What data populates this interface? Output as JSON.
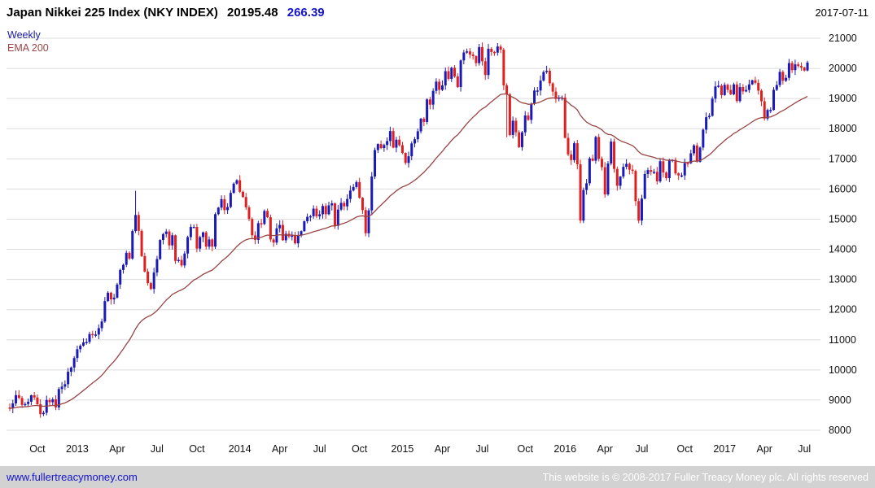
{
  "header": {
    "title": "Japan Nikkei 225 Index (NKY INDEX)",
    "last_price": "20195.48",
    "change": "266.39",
    "date": "2017-07-11"
  },
  "legend": {
    "series_label": "Weekly",
    "overlay_label": "EMA 200"
  },
  "footer": {
    "website_link": "www.fullertreacymoney.com",
    "copyright": "This website is © 2008-2017 Fuller Treacy Money plc. All rights reserved"
  },
  "colors": {
    "up_candle": "#1a1ab8",
    "down_candle": "#e02020",
    "ema_line": "#994444",
    "grid": "#dcdcdc",
    "change_text": "#1414c8",
    "weekly_label": "#1a1aa0",
    "link": "#1414cc",
    "copyright_text": "#ffffff",
    "footer_bg": "#d2d2d2"
  },
  "chart_data": {
    "type": "candlestick",
    "timeframe": "weekly",
    "title": "Japan Nikkei 225 Index (NKY INDEX)",
    "last": 20195.48,
    "change": 266.39,
    "ylim": [
      8000,
      21000
    ],
    "ytick_step": 1000,
    "y_ticks": [
      8000,
      9000,
      10000,
      11000,
      12000,
      13000,
      14000,
      15000,
      16000,
      17000,
      18000,
      19000,
      20000,
      21000
    ],
    "grid": "horizontal",
    "y_axis_side": "right",
    "legend_position": "top-left",
    "overlay": {
      "label": "EMA 200",
      "period_weeks": 40
    },
    "x_ticks": [
      {
        "label": "Oct",
        "index": 9
      },
      {
        "label": "2013",
        "index": 22
      },
      {
        "label": "Apr",
        "index": 35
      },
      {
        "label": "Jul",
        "index": 48
      },
      {
        "label": "Oct",
        "index": 61
      },
      {
        "label": "2014",
        "index": 75
      },
      {
        "label": "Apr",
        "index": 88
      },
      {
        "label": "Jul",
        "index": 101
      },
      {
        "label": "Oct",
        "index": 114
      },
      {
        "label": "2015",
        "index": 128
      },
      {
        "label": "Apr",
        "index": 141
      },
      {
        "label": "Jul",
        "index": 154
      },
      {
        "label": "Oct",
        "index": 168
      },
      {
        "label": "2016",
        "index": 181
      },
      {
        "label": "Apr",
        "index": 194
      },
      {
        "label": "Jul",
        "index": 206
      },
      {
        "label": "Oct",
        "index": 220
      },
      {
        "label": "2017",
        "index": 233
      },
      {
        "label": "Apr",
        "index": 246
      },
      {
        "label": "Jul",
        "index": 259
      }
    ],
    "weekly_closes": [
      8726,
      8891,
      9163,
      9070,
      8840,
      8871,
      8947,
      9159,
      9086,
      8863,
      8534,
      8580,
      9003,
      8930,
      9024,
      8757,
      9367,
      9446,
      9527,
      9940,
      10080,
      10395,
      10688,
      10802,
      10913,
      10927,
      11191,
      11153,
      11173,
      11385,
      11606,
      12284,
      12561,
      12338,
      12398,
      12834,
      13317,
      13485,
      13884,
      13694,
      14607,
      15138,
      14612,
      13775,
      13261,
      12878,
      12686,
      13230,
      13677,
      14310,
      14506,
      14590,
      14130,
      14466,
      13615,
      13650,
      13465,
      13860,
      14405,
      14742,
      14743,
      14024,
      14405,
      14562,
      14088,
      14328,
      14087,
      15166,
      15382,
      15662,
      15300,
      15403,
      15870,
      16178,
      16291,
      15908,
      15734,
      15392,
      15007,
      14463,
      14313,
      14866,
      14841,
      15274,
      15064,
      14328,
      14224,
      14696,
      14809,
      14300,
      14516,
      14429,
      14457,
      14199,
      14462,
      14602,
      14930,
      15077,
      15097,
      15349,
      15095,
      15162,
      15437,
      15164,
      15458,
      15523,
      14778,
      15318,
      15539,
      15425,
      15669,
      15949,
      16067,
      16230,
      15709,
      15301,
      14533,
      15292,
      16414,
      17291,
      17491,
      17358,
      17460,
      17590,
      17921,
      17372,
      17636,
      17451,
      17197,
      16864,
      17086,
      17512,
      17649,
      17913,
      18332,
      18224,
      18971,
      18797,
      19254,
      19561,
      19286,
      19435,
      19907,
      19653,
      20020,
      19733,
      19380,
      20264,
      20527,
      20563,
      20460,
      20407,
      20174,
      20706,
      20236,
      19780,
      20651,
      20545,
      20522,
      20725,
      20620,
      19436,
      19136,
      17792,
      18264,
      17881,
      17388,
      17880,
      18438,
      18292,
      18825,
      19265,
      19266,
      19596,
      19880,
      19921,
      19504,
      19230,
      18986,
      19033,
      19034,
      17697,
      17147,
      16959,
      17518,
      16819,
      14952,
      15967,
      16188,
      17014,
      16938,
      17724,
      17002,
      16724,
      15821,
      16848,
      17572,
      16666,
      16107,
      16412,
      16736,
      16835,
      16642,
      16601,
      15599,
      14952,
      15682,
      16498,
      16627,
      16569,
      16569,
      16254,
      16920,
      16546,
      16360,
      16966,
      16966,
      16519,
      16449,
      16450,
      16860,
      16856,
      17184,
      17446,
      16905,
      17375,
      17967,
      18381,
      18426,
      18996,
      19401,
      19427,
      19114,
      19454,
      19287,
      19138,
      19467,
      18918,
      19379,
      19235,
      19284,
      19469,
      19605,
      19522,
      19263,
      18909,
      18336,
      18621,
      18621,
      19289,
      19446,
      19884,
      19590,
      19686,
      20177,
      19943,
      20133,
      20080,
      20029,
      19929,
      20195
    ],
    "wick_overrides": {
      "41": {
        "high": 15943
      },
      "162": {
        "low": 17714
      },
      "186": {
        "low": 14866
      },
      "205": {
        "low": 14864
      }
    }
  }
}
